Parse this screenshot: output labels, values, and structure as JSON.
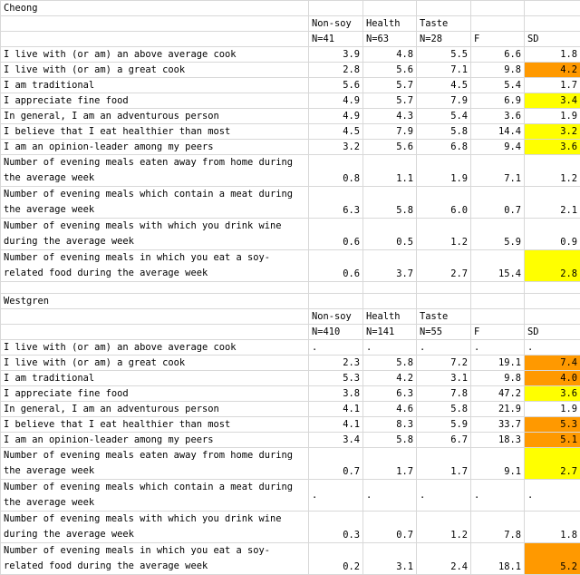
{
  "sections": [
    {
      "title": "Cheong",
      "headers1": [
        "Non-soy",
        "Health",
        "Taste",
        "",
        ""
      ],
      "headers2": [
        "N=41",
        "N=63",
        "N=28",
        "F",
        "SD"
      ],
      "rows": [
        {
          "label": "I live with (or am) an above average cook",
          "values": [
            "3.9",
            "4.8",
            "5.5",
            "6.6",
            "1.8"
          ],
          "sd_hl": ""
        },
        {
          "label": "I live with (or am) a great cook",
          "values": [
            "2.8",
            "5.6",
            "7.1",
            "9.8",
            "4.2"
          ],
          "sd_hl": "o"
        },
        {
          "label": "I am traditional",
          "values": [
            "5.6",
            "5.7",
            "4.5",
            "5.4",
            "1.7"
          ],
          "sd_hl": ""
        },
        {
          "label": "I appreciate fine food",
          "values": [
            "4.9",
            "5.7",
            "7.9",
            "6.9",
            "3.4"
          ],
          "sd_hl": "y"
        },
        {
          "label": "In general, I am an adventurous person",
          "values": [
            "4.9",
            "4.3",
            "5.4",
            "3.6",
            "1.9"
          ],
          "sd_hl": ""
        },
        {
          "label": "I believe that I eat healthier than most",
          "values": [
            "4.5",
            "7.9",
            "5.8",
            "14.4",
            "3.2"
          ],
          "sd_hl": "y"
        },
        {
          "label": "I am an opinion-leader among my peers",
          "values": [
            "3.2",
            "5.6",
            "6.8",
            "9.4",
            "3.6"
          ],
          "sd_hl": "y"
        },
        {
          "label": "Number of evening meals eaten away from home during the average week",
          "values": [
            "0.8",
            "1.1",
            "1.9",
            "7.1",
            "1.2"
          ],
          "sd_hl": ""
        },
        {
          "label": "Number of evening meals which contain a meat during the average week",
          "values": [
            "6.3",
            "5.8",
            "6.0",
            "0.7",
            "2.1"
          ],
          "sd_hl": ""
        },
        {
          "label": "Number of evening meals with which you drink wine during the average week",
          "values": [
            "0.6",
            "0.5",
            "1.2",
            "5.9",
            "0.9"
          ],
          "sd_hl": ""
        },
        {
          "label": "Number of evening meals in which you eat a soy-related food during the average week",
          "values": [
            "0.6",
            "3.7",
            "2.7",
            "15.4",
            "2.8"
          ],
          "sd_hl": "y"
        }
      ]
    },
    {
      "title": "Westgren",
      "headers1": [
        "Non-soy",
        "Health",
        "Taste",
        "",
        ""
      ],
      "headers2": [
        "N=410",
        "N=141",
        "N=55",
        "F",
        "SD"
      ],
      "rows": [
        {
          "label": "I live with (or am) an above average cook",
          "values": [
            ".",
            ".",
            ".",
            ".",
            "."
          ],
          "sd_hl": "",
          "dots": true
        },
        {
          "label": "I live with (or am) a great cook",
          "values": [
            "2.3",
            "5.8",
            "7.2",
            "19.1",
            "7.4"
          ],
          "sd_hl": "o"
        },
        {
          "label": "I am traditional",
          "values": [
            "5.3",
            "4.2",
            "3.1",
            "9.8",
            "4.0"
          ],
          "sd_hl": "o"
        },
        {
          "label": "I appreciate fine food",
          "values": [
            "3.8",
            "6.3",
            "7.8",
            "47.2",
            "3.6"
          ],
          "sd_hl": "y"
        },
        {
          "label": "In general, I am an adventurous person",
          "values": [
            "4.1",
            "4.6",
            "5.8",
            "21.9",
            "1.9"
          ],
          "sd_hl": ""
        },
        {
          "label": "I believe that I eat healthier than most",
          "values": [
            "4.1",
            "8.3",
            "5.9",
            "33.7",
            "5.3"
          ],
          "sd_hl": "o"
        },
        {
          "label": "I am an opinion-leader among my peers",
          "values": [
            "3.4",
            "5.8",
            "6.7",
            "18.3",
            "5.1"
          ],
          "sd_hl": "o"
        },
        {
          "label": "Number of evening meals eaten away from home during the average week",
          "values": [
            "0.7",
            "1.7",
            "1.7",
            "9.1",
            "2.7"
          ],
          "sd_hl": "y"
        },
        {
          "label": "Number of evening meals which contain a meat during the average week",
          "values": [
            ".",
            ".",
            ".",
            ".",
            "."
          ],
          "sd_hl": "",
          "dots": true
        },
        {
          "label": "Number of evening meals with which you drink wine during the average week",
          "values": [
            "0.3",
            "0.7",
            "1.2",
            "7.8",
            "1.8"
          ],
          "sd_hl": ""
        },
        {
          "label": "Number of evening meals in which you eat a soy-related food during the average week",
          "values": [
            "0.2",
            "3.1",
            "2.4",
            "18.1",
            "5.2"
          ],
          "sd_hl": "o"
        }
      ]
    }
  ],
  "colors": {
    "yellow": "#ffff00",
    "orange": "#ff9900",
    "grid": "#d8d8d8"
  }
}
